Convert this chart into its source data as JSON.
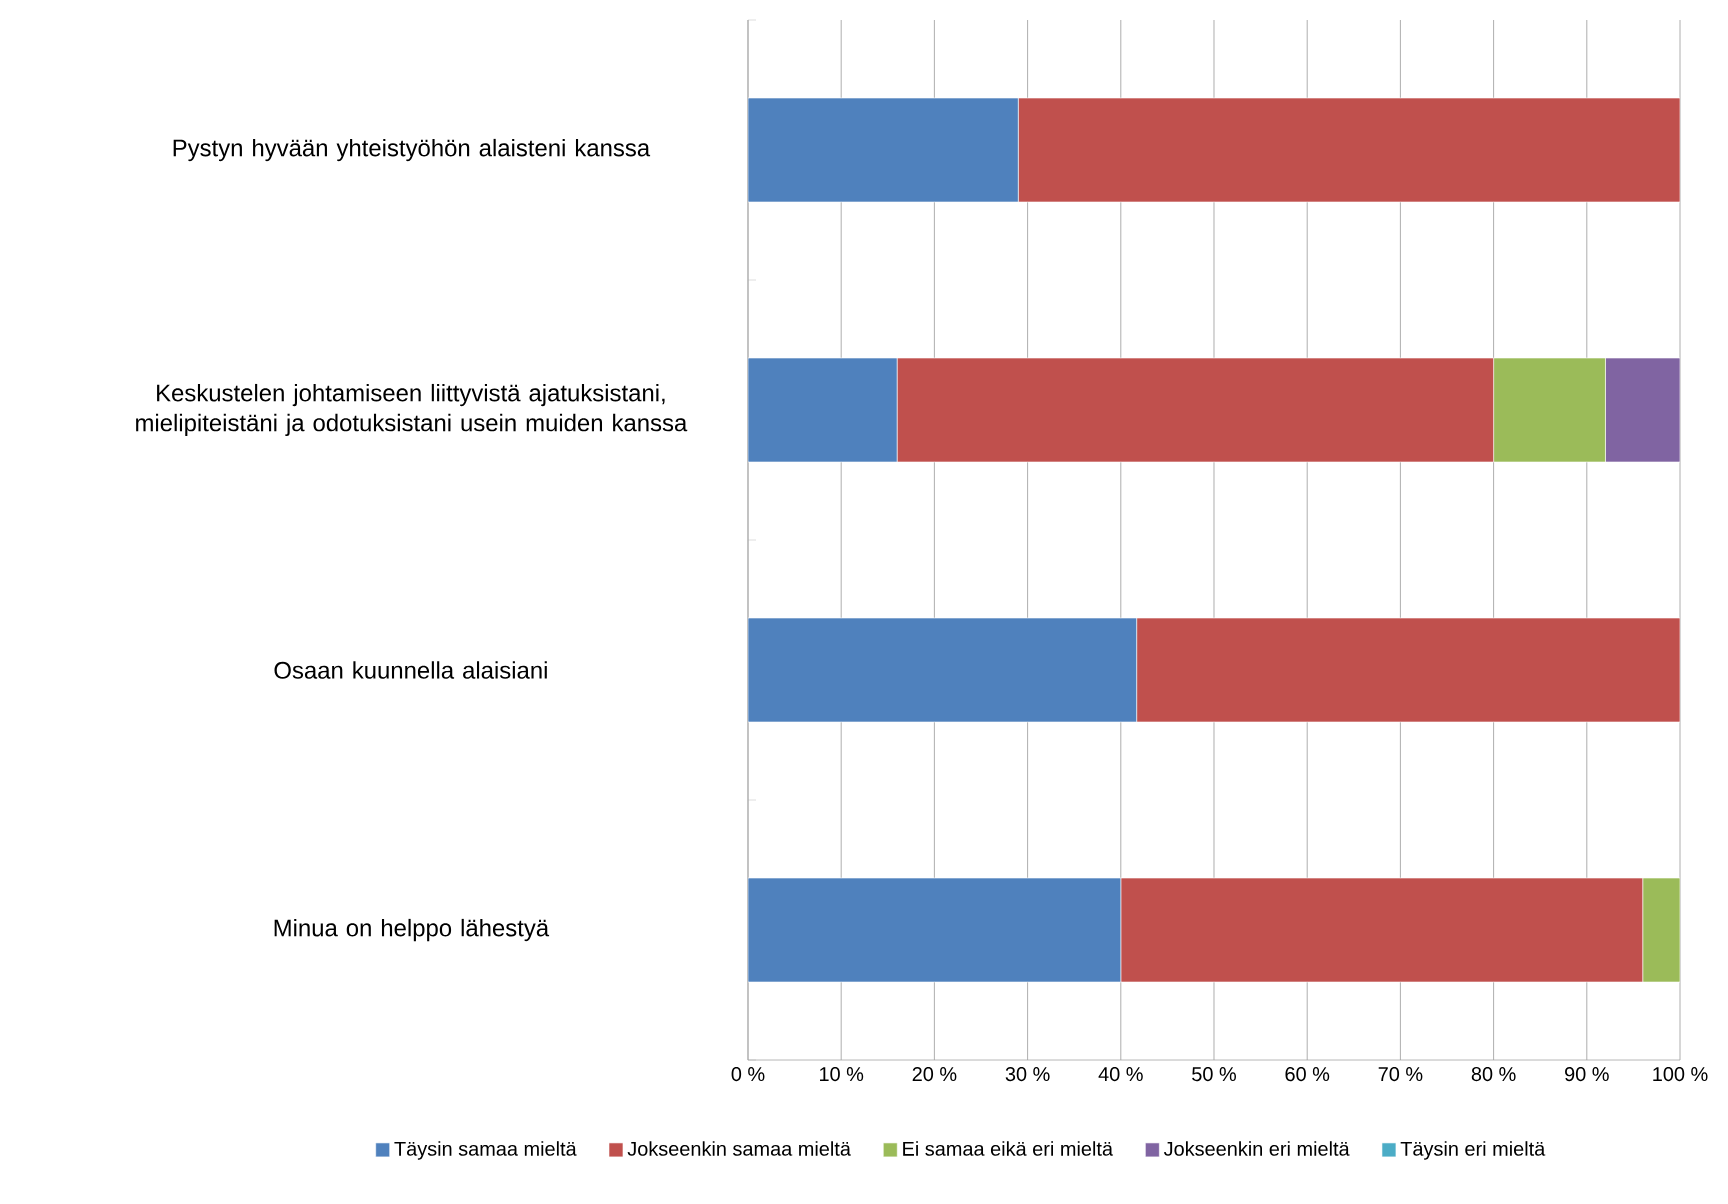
{
  "chart_data": {
    "type": "bar",
    "orientation": "horizontal",
    "stacked": true,
    "categories": [
      "Pystyn hyvään yhteistyöhön alaisteni kanssa",
      "Keskustelen johtamiseen liittyvistä ajatuksistani, mielipiteistäni ja odotuksistani usein muiden kanssa",
      "Osaan kuunnella alaisiani",
      "Minua on helppo lähestyä"
    ],
    "series": [
      {
        "name": "Täysin samaa mieltä",
        "color": "#4f81bd",
        "values": [
          29,
          16,
          41.7,
          40
        ]
      },
      {
        "name": "Jokseenkin samaa mieltä",
        "color": "#c0504d",
        "values": [
          71,
          64,
          58.3,
          56
        ]
      },
      {
        "name": "Ei samaa eikä eri mieltä",
        "color": "#9bbb59",
        "values": [
          0,
          12,
          0,
          4
        ]
      },
      {
        "name": "Jokseenkin eri mieltä",
        "color": "#8064a2",
        "values": [
          0,
          8,
          0,
          0
        ]
      },
      {
        "name": "Täysin eri mieltä",
        "color": "#4bacc6",
        "values": [
          0,
          0,
          0,
          0
        ]
      }
    ],
    "xlim": [
      0,
      100
    ],
    "xticks": [
      {
        "value": 0,
        "label": "0 %"
      },
      {
        "value": 10,
        "label": "10 %"
      },
      {
        "value": 20,
        "label": "20 %"
      },
      {
        "value": 30,
        "label": "30 %"
      },
      {
        "value": 40,
        "label": "40 %"
      },
      {
        "value": 50,
        "label": "50 %"
      },
      {
        "value": 60,
        "label": "60 %"
      },
      {
        "value": 70,
        "label": "70 %"
      },
      {
        "value": 80,
        "label": "80 %"
      },
      {
        "value": 90,
        "label": "90 %"
      },
      {
        "value": 100,
        "label": "100 %"
      }
    ],
    "grid": "x",
    "legend": "bottom"
  }
}
